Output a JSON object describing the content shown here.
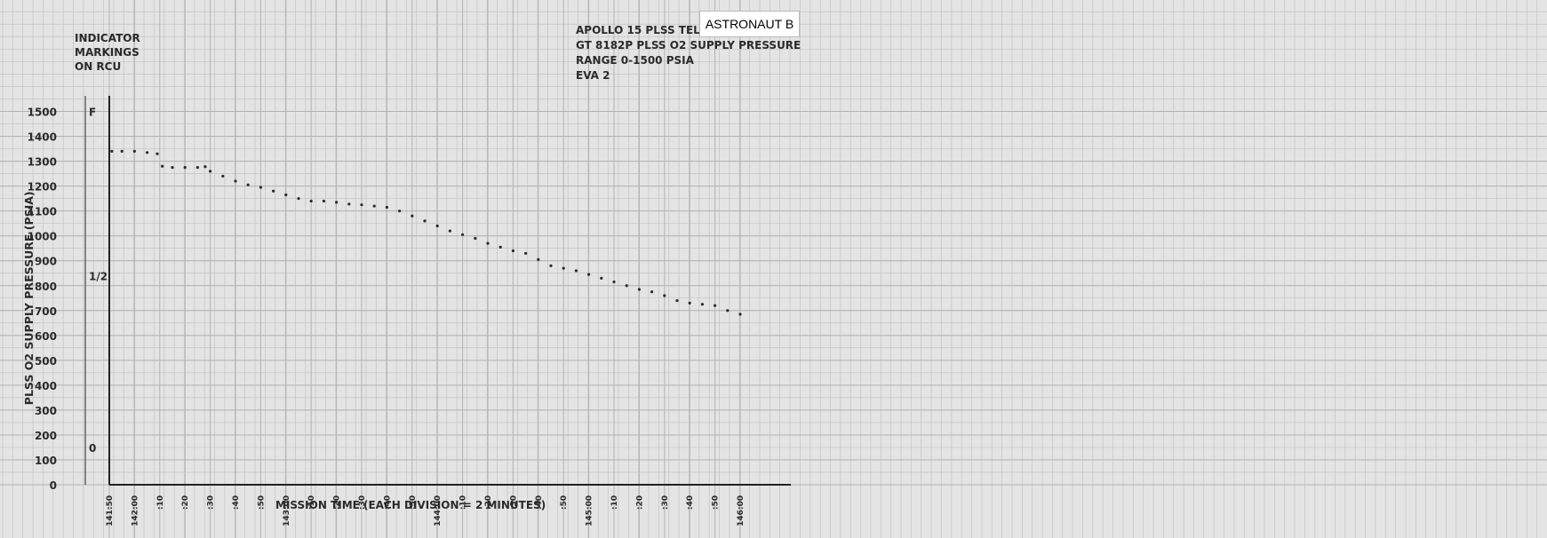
{
  "header": {
    "label_tag": "ASTRONAUT B",
    "title_lines": [
      "APOLLO 15 PLSS TELEMETRY",
      "GT 8182P PLSS O2  SUPPLY PRESSURE",
      "RANGE 0-1500 PSIA",
      "EVA 2"
    ]
  },
  "indicator": {
    "heading_lines": [
      "INDICATOR",
      "MARKINGS",
      "ON RCU"
    ],
    "marks": [
      {
        "label": "F",
        "value": 1500
      },
      {
        "label": "1/2",
        "value": 840
      },
      {
        "label": "0",
        "value": 150
      }
    ]
  },
  "chart_data": {
    "type": "scatter",
    "title": "APOLLO 15 PLSS TELEMETRY GT 8182P PLSS O2 SUPPLY PRESSURE RANGE 0-1500 PSIA EVA 2",
    "ylabel": "PLSS O2 SUPPLY PRESSURE (PSIA)",
    "xlabel": "MISSION TIME (EACH DIVISION = 2 MINUTES)",
    "ylim": [
      0,
      1500
    ],
    "yticks": [
      0,
      100,
      200,
      300,
      400,
      500,
      600,
      700,
      800,
      900,
      1000,
      1100,
      1200,
      1300,
      1400,
      1500
    ],
    "x_unit": "minutes after 141:50 GET",
    "xlim": [
      0,
      250
    ],
    "x_tick_labels": [
      {
        "x": 0,
        "label": "141:50"
      },
      {
        "x": 10,
        "label": "142:00"
      },
      {
        "x": 20,
        "label": ":10"
      },
      {
        "x": 30,
        "label": ":20"
      },
      {
        "x": 40,
        "label": ":30"
      },
      {
        "x": 50,
        "label": ":40"
      },
      {
        "x": 60,
        "label": ":50"
      },
      {
        "x": 70,
        "label": "143:00"
      },
      {
        "x": 80,
        "label": ":10"
      },
      {
        "x": 90,
        "label": ":20"
      },
      {
        "x": 100,
        "label": ":30"
      },
      {
        "x": 110,
        "label": ":40"
      },
      {
        "x": 120,
        "label": ":50"
      },
      {
        "x": 130,
        "label": "144:00"
      },
      {
        "x": 140,
        "label": ":10"
      },
      {
        "x": 150,
        "label": ":20"
      },
      {
        "x": 160,
        "label": ":30"
      },
      {
        "x": 170,
        "label": ":40"
      },
      {
        "x": 180,
        "label": ":50"
      },
      {
        "x": 190,
        "label": "145:00"
      },
      {
        "x": 200,
        "label": ":10"
      },
      {
        "x": 210,
        "label": ":20"
      },
      {
        "x": 220,
        "label": ":30"
      },
      {
        "x": 230,
        "label": ":40"
      },
      {
        "x": 240,
        "label": ":50"
      },
      {
        "x": 250,
        "label": "146:00"
      }
    ],
    "grid": true,
    "series": [
      {
        "x": [
          1,
          5,
          10,
          15,
          19,
          21,
          25,
          30,
          35,
          38,
          40,
          45,
          50,
          55,
          60,
          65,
          70,
          75,
          80,
          85,
          90,
          95,
          100,
          105,
          110,
          115,
          120,
          125,
          130,
          135,
          140,
          145,
          150,
          155,
          160,
          165,
          170,
          175,
          180,
          185,
          190,
          195,
          200,
          205,
          210,
          215,
          220,
          225,
          230,
          235,
          240,
          245,
          250
        ],
        "values": [
          1340,
          1340,
          1340,
          1335,
          1330,
          1280,
          1275,
          1275,
          1275,
          1278,
          1260,
          1240,
          1220,
          1205,
          1195,
          1180,
          1165,
          1150,
          1140,
          1140,
          1135,
          1128,
          1125,
          1120,
          1115,
          1100,
          1080,
          1060,
          1040,
          1020,
          1005,
          990,
          970,
          955,
          940,
          930,
          905,
          880,
          870,
          860,
          845,
          830,
          815,
          800,
          785,
          775,
          760,
          740,
          730,
          725,
          720,
          700,
          685
        ]
      }
    ]
  }
}
